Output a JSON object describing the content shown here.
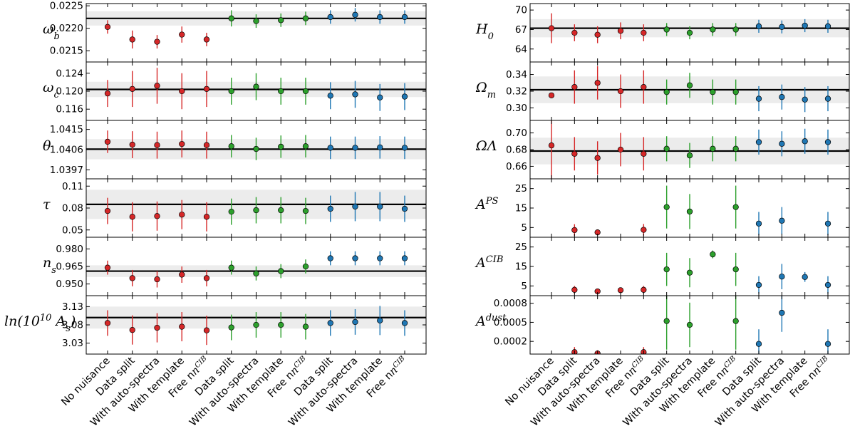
{
  "chart_data": {
    "type": "errorbar",
    "categories": [
      "No nuisance",
      "Data split",
      "With auto-spectra",
      "With template",
      "Free n^CIB",
      "Data split",
      "With auto-spectra",
      "With template",
      "Free n^CIB",
      "Data split",
      "With auto-spectra",
      "With template",
      "Free n^CIB"
    ],
    "category_colors": [
      "#d62728",
      "#d62728",
      "#d62728",
      "#d62728",
      "#d62728",
      "#2ca02c",
      "#2ca02c",
      "#2ca02c",
      "#2ca02c",
      "#1f77b4",
      "#1f77b4",
      "#1f77b4",
      "#1f77b4"
    ],
    "colors": {
      "red": "#d62728",
      "green": "#2ca02c",
      "blue": "#1f77b4",
      "band": "#ececec"
    },
    "panels": [
      {
        "column": "left",
        "label": "ω_b",
        "ylim": [
          0.02125,
          0.02255
        ],
        "yticks": [
          "0.0215",
          "0.0220",
          "0.0225"
        ],
        "ytick_values": [
          0.0215,
          0.022,
          0.0225
        ],
        "reference": 0.02222,
        "band": [
          0.02206,
          0.02238
        ],
        "y": [
          0.02203,
          0.02175,
          0.0217,
          0.02186,
          0.02175,
          0.02222,
          0.02216,
          0.02218,
          0.02222,
          0.02225,
          0.0223,
          0.02225,
          0.02225
        ],
        "err": [
          0.00015,
          0.0002,
          0.00015,
          0.00018,
          0.00015,
          0.00018,
          0.00015,
          0.00015,
          0.00015,
          0.00015,
          0.00015,
          0.00015,
          0.00015
        ]
      },
      {
        "column": "left",
        "label": "ω_c",
        "ylim": [
          0.1135,
          0.1265
        ],
        "yticks": [
          "0.116",
          "0.120",
          "0.124"
        ],
        "ytick_values": [
          0.116,
          0.12,
          0.124
        ],
        "reference": 0.1204,
        "band": [
          0.1187,
          0.1221
        ],
        "y": [
          0.1195,
          0.1205,
          0.1212,
          0.12,
          0.1205,
          0.12,
          0.121,
          0.12,
          0.12,
          0.119,
          0.1193,
          0.1186,
          0.1188
        ],
        "err": [
          0.003,
          0.004,
          0.004,
          0.004,
          0.004,
          0.003,
          0.003,
          0.003,
          0.003,
          0.003,
          0.003,
          0.003,
          0.003
        ]
      },
      {
        "column": "left",
        "label": "θ",
        "ylim": [
          1.0393,
          1.0419
        ],
        "yticks": [
          "1.0397",
          "1.0406",
          "1.0415"
        ],
        "ytick_values": [
          1.0397,
          1.0406,
          1.0415
        ],
        "reference": 1.04062,
        "band": [
          1.04017,
          1.04107
        ],
        "y": [
          1.04095,
          1.04082,
          1.0408,
          1.04085,
          1.0408,
          1.04075,
          1.04063,
          1.04073,
          1.04075,
          1.04068,
          1.04068,
          1.0407,
          1.04068
        ],
        "err": [
          0.0005,
          0.0006,
          0.0006,
          0.0006,
          0.0006,
          0.0005,
          0.0005,
          0.0005,
          0.0005,
          0.0005,
          0.0005,
          0.0005,
          0.0005
        ]
      },
      {
        "column": "left",
        "label": "τ",
        "ylim": [
          0.04,
          0.12
        ],
        "yticks": [
          "0.05",
          "0.08",
          "0.11"
        ],
        "ytick_values": [
          0.05,
          0.08,
          0.11
        ],
        "reference": 0.085,
        "band": [
          0.065,
          0.105
        ],
        "y": [
          0.076,
          0.068,
          0.069,
          0.071,
          0.068,
          0.075,
          0.077,
          0.077,
          0.076,
          0.079,
          0.082,
          0.082,
          0.079
        ],
        "err": [
          0.018,
          0.02,
          0.02,
          0.02,
          0.02,
          0.018,
          0.018,
          0.018,
          0.018,
          0.018,
          0.02,
          0.02,
          0.018
        ]
      },
      {
        "column": "left",
        "label": "n_s",
        "ylim": [
          0.94,
          0.99
        ],
        "yticks": [
          "0.950",
          "0.965",
          "0.980"
        ],
        "ytick_values": [
          0.95,
          0.965,
          0.98
        ],
        "reference": 0.961,
        "band": [
          0.956,
          0.966
        ],
        "y": [
          0.964,
          0.955,
          0.954,
          0.958,
          0.955,
          0.964,
          0.959,
          0.961,
          0.965,
          0.972,
          0.972,
          0.972,
          0.972
        ],
        "err": [
          0.006,
          0.007,
          0.007,
          0.007,
          0.007,
          0.006,
          0.006,
          0.006,
          0.006,
          0.006,
          0.006,
          0.006,
          0.006
        ]
      },
      {
        "column": "left",
        "label": "ln(10^10 A_s)",
        "ylim": [
          3.0,
          3.16
        ],
        "yticks": [
          "3.03",
          "3.08",
          "3.13"
        ],
        "ytick_values": [
          3.03,
          3.08,
          3.13
        ],
        "reference": 3.1,
        "band": [
          3.07,
          3.13
        ],
        "y": [
          3.085,
          3.066,
          3.072,
          3.075,
          3.065,
          3.073,
          3.08,
          3.08,
          3.075,
          3.085,
          3.088,
          3.092,
          3.085
        ],
        "err": [
          0.035,
          0.04,
          0.04,
          0.04,
          0.04,
          0.035,
          0.035,
          0.035,
          0.035,
          0.035,
          0.035,
          0.04,
          0.035
        ]
      },
      {
        "column": "right",
        "label": "H_0",
        "ylim": [
          62.0,
          71.0
        ],
        "yticks": [
          "64",
          "67",
          "70"
        ],
        "ytick_values": [
          64,
          67,
          70
        ],
        "reference": 67.2,
        "band": [
          65.8,
          68.6
        ],
        "y": [
          67.2,
          66.5,
          66.2,
          66.8,
          66.5,
          67.0,
          66.5,
          67.0,
          67.0,
          67.5,
          67.4,
          67.6,
          67.5
        ],
        "err": [
          2.3,
          1.3,
          1.3,
          1.3,
          1.3,
          1.0,
          1.0,
          1.0,
          1.0,
          1.0,
          1.0,
          1.0,
          1.0
        ]
      },
      {
        "column": "right",
        "label": "Ω_m",
        "ylim": [
          0.285,
          0.355
        ],
        "yticks": [
          "0.30",
          "0.32",
          "0.34"
        ],
        "ytick_values": [
          0.3,
          0.32,
          0.34
        ],
        "reference": 0.3217,
        "band": [
          0.3057,
          0.3377
        ],
        "y": [
          0.315,
          0.325,
          0.33,
          0.32,
          0.325,
          0.319,
          0.327,
          0.319,
          0.319,
          0.311,
          0.313,
          0.31,
          0.311
        ],
        "err": [
          0.0,
          0.02,
          0.02,
          0.02,
          0.02,
          0.015,
          0.015,
          0.015,
          0.015,
          0.015,
          0.015,
          0.015,
          0.015
        ]
      },
      {
        "column": "right",
        "label": "Ω_Λ",
        "ylim": [
          0.645,
          0.715
        ],
        "yticks": [
          "0.66",
          "0.68",
          "0.70"
        ],
        "ytick_values": [
          0.66,
          0.68,
          0.7
        ],
        "reference": 0.6783,
        "band": [
          0.6623,
          0.6943
        ],
        "y": [
          0.685,
          0.675,
          0.67,
          0.68,
          0.675,
          0.681,
          0.673,
          0.681,
          0.681,
          0.689,
          0.687,
          0.69,
          0.689
        ],
        "err": [
          0.04,
          0.02,
          0.02,
          0.02,
          0.02,
          0.015,
          0.015,
          0.015,
          0.015,
          0.015,
          0.015,
          0.015,
          0.015
        ]
      },
      {
        "column": "right",
        "label": "A^PS",
        "ylim": [
          0,
          30
        ],
        "yticks": [
          "5",
          "15",
          "25"
        ],
        "ytick_values": [
          5,
          15,
          25
        ],
        "reference": null,
        "band": null,
        "y": [
          null,
          3.7,
          2.5,
          null,
          3.8,
          15.5,
          13.2,
          null,
          15.5,
          7.0,
          8.5,
          null,
          7.0
        ],
        "err": [
          null,
          3.0,
          1.5,
          null,
          3.0,
          11.0,
          9.0,
          null,
          11.0,
          6.0,
          7.0,
          null,
          6.0
        ]
      },
      {
        "column": "right",
        "label": "A^CIB",
        "ylim": [
          0,
          30
        ],
        "yticks": [
          "5",
          "15",
          "25"
        ],
        "ytick_values": [
          5,
          15,
          25
        ],
        "reference": null,
        "band": null,
        "y": [
          null,
          3.0,
          2.2,
          2.8,
          3.0,
          13.5,
          11.8,
          21.2,
          13.5,
          5.5,
          9.8,
          9.6,
          5.5
        ],
        "err": [
          null,
          2.0,
          1.2,
          1.0,
          2.0,
          8.5,
          7.5,
          2.0,
          8.5,
          4.5,
          6.5,
          2.5,
          4.5
        ]
      },
      {
        "column": "right",
        "label": "A^dust",
        "ylim": [
          0.0,
          0.00092
        ],
        "yticks": [
          "0.0002",
          "0.0005",
          "0.0008"
        ],
        "ytick_values": [
          0.0002,
          0.0005,
          0.0008
        ],
        "reference": null,
        "band": null,
        "y": [
          null,
          3e-05,
          1e-05,
          null,
          3e-05,
          0.00052,
          0.00046,
          null,
          0.00052,
          0.00016,
          0.00065,
          null,
          0.00016
        ],
        "err": [
          null,
          8e-05,
          5e-05,
          null,
          8e-05,
          0.00045,
          0.00035,
          null,
          0.00045,
          0.00023,
          0.0003,
          null,
          0.00023
        ]
      }
    ]
  }
}
